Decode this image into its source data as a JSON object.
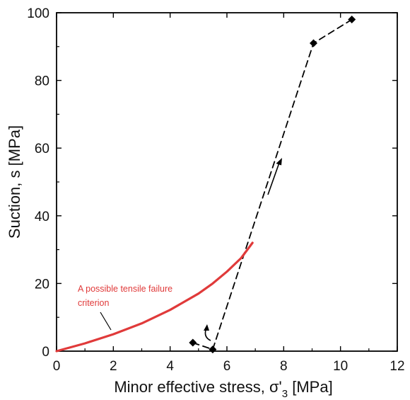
{
  "chart_data": {
    "type": "line",
    "title": "",
    "xlabel": "Minor effective stress, σ'",
    "xlabel_sub": "3",
    "xlabel_unit": " [MPa]",
    "ylabel": "Suction, s [MPa]",
    "xlim": [
      0,
      12
    ],
    "ylim": [
      0,
      100
    ],
    "xticks": [
      0,
      2,
      4,
      6,
      8,
      10,
      12
    ],
    "yticks": [
      0,
      20,
      40,
      60,
      80,
      100
    ],
    "grid": false,
    "legend": "none",
    "series": [
      {
        "style": "dashed",
        "marker": "diamond",
        "color": "#000000",
        "x": [
          4.8,
          5.5,
          9.05,
          10.4
        ],
        "y": [
          2.5,
          0.5,
          91,
          98
        ]
      },
      {
        "style": "solid",
        "color": "#e03a3a",
        "x": [
          0,
          1,
          2,
          3,
          4,
          5,
          5.5,
          6,
          6.5,
          6.9
        ],
        "y": [
          0,
          2.3,
          5,
          8.2,
          12.2,
          17,
          20,
          23.5,
          27.5,
          32
        ]
      }
    ],
    "annotations": [
      {
        "text": "A possible tensile failure",
        "color": "#e03a3a"
      },
      {
        "text": "criterion",
        "color": "#e03a3a"
      }
    ]
  }
}
